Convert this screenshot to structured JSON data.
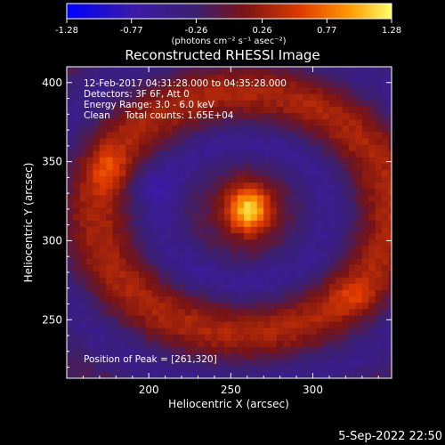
{
  "chart_data": {
    "type": "heatmap",
    "title": "Reconstructed RHESSI Image",
    "xlabel": "Heliocentric X (arcsec)",
    "ylabel": "Heliocentric Y (arcsec)",
    "xlim": [
      150,
      348
    ],
    "ylim": [
      213,
      410
    ],
    "x_ticks": [
      200,
      250,
      300
    ],
    "y_ticks": [
      250,
      300,
      350,
      400
    ],
    "x_tick_labels": [
      "200",
      "250",
      "300"
    ],
    "y_tick_labels": [
      "250",
      "300",
      "350",
      "400"
    ],
    "colorbar": {
      "ticks": [
        -1.28,
        -0.77,
        -0.26,
        0.26,
        0.77,
        1.28
      ],
      "tick_labels": [
        "-1.28",
        "-0.77",
        "-0.26",
        "0.26",
        "0.77",
        "1.28"
      ],
      "unit_label": "(photons cm⁻² s⁻¹ asec⁻²)",
      "colors": [
        "#0000ff",
        "#3a1aa8",
        "#3c2070",
        "#7a1414",
        "#e03a00",
        "#ff9a00",
        "#ffff66"
      ]
    },
    "info_lines": [
      "12-Feb-2017 04:31:28.000 to 04:35:28.000",
      "Detectors: 3F 6F, Att 0",
      "Energy Range: 3.0 - 6.0 keV",
      "Clean     Total counts: 1.65E+04"
    ],
    "peak_label": "Position of Peak = [261,320]",
    "peak": {
      "x": 261,
      "y": 320
    },
    "features": [
      {
        "kind": "peak",
        "x": 261,
        "y": 320,
        "sx": 10,
        "sy": 11,
        "amp": 1.28
      },
      {
        "kind": "ring",
        "cx": 258,
        "cy": 318,
        "r": 52,
        "width": 11,
        "amp": -0.42
      },
      {
        "kind": "ring",
        "cx": 258,
        "cy": 318,
        "r": 90,
        "width": 13,
        "amp": 0.45
      },
      {
        "kind": "ring",
        "cx": 258,
        "cy": 318,
        "r": 128,
        "width": 12,
        "amp": -0.35
      },
      {
        "kind": "blob",
        "x": 200,
        "y": 335,
        "sx": 9,
        "sy": 7,
        "amp": -0.3
      },
      {
        "kind": "blob",
        "x": 175,
        "y": 345,
        "sx": 8,
        "sy": 10,
        "amp": 0.35
      },
      {
        "kind": "blob",
        "x": 325,
        "y": 265,
        "sx": 10,
        "sy": 8,
        "amp": 0.25
      }
    ]
  },
  "footer": {
    "timestamp": "5-Sep-2022 22:50"
  }
}
